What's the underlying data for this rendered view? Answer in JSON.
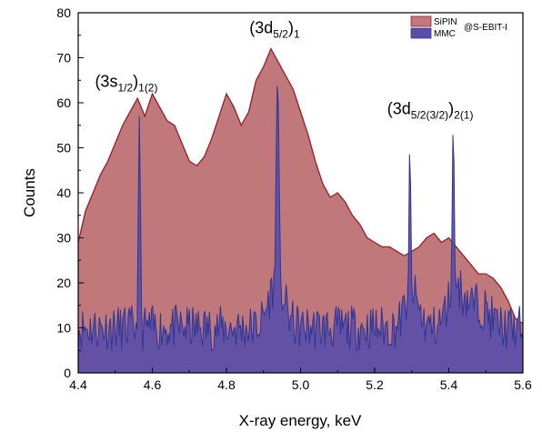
{
  "chart_data": {
    "type": "area",
    "xlabel": "X-ray energy, keV",
    "ylabel": "Counts",
    "xlim": [
      4.4,
      5.6
    ],
    "ylim": [
      0,
      80
    ],
    "x_ticks": [
      "4.4",
      "4.6",
      "4.8",
      "5.0",
      "5.2",
      "5.4",
      "5.6"
    ],
    "y_ticks": [
      "0",
      "10",
      "20",
      "30",
      "40",
      "50",
      "60",
      "70",
      "80"
    ],
    "grid": false,
    "legend": {
      "placement": "top-right",
      "suffix": "@S-EBIT-I"
    },
    "series": [
      {
        "name": "SiPIN",
        "color_fill": "#c0787a",
        "color_line": "#9a1c22",
        "x": [
          4.4,
          4.42,
          4.44,
          4.46,
          4.48,
          4.5,
          4.52,
          4.54,
          4.56,
          4.58,
          4.6,
          4.62,
          4.64,
          4.66,
          4.68,
          4.7,
          4.72,
          4.74,
          4.76,
          4.78,
          4.8,
          4.82,
          4.84,
          4.86,
          4.88,
          4.9,
          4.92,
          4.94,
          4.96,
          4.98,
          5.0,
          5.02,
          5.04,
          5.06,
          5.08,
          5.1,
          5.12,
          5.14,
          5.16,
          5.18,
          5.2,
          5.22,
          5.24,
          5.26,
          5.28,
          5.3,
          5.32,
          5.34,
          5.36,
          5.38,
          5.4,
          5.42,
          5.44,
          5.46,
          5.48,
          5.5,
          5.52,
          5.54,
          5.56,
          5.58,
          5.6
        ],
        "y": [
          29,
          36,
          40,
          44,
          47,
          51,
          55,
          58,
          61,
          57,
          62,
          59,
          56,
          55,
          51,
          47,
          46,
          48,
          52,
          57,
          62,
          59,
          55,
          58,
          65,
          68,
          72,
          69,
          66,
          63,
          58,
          53,
          47,
          42,
          39,
          40,
          38,
          35,
          33,
          30,
          29,
          28,
          28,
          27,
          26,
          27,
          28,
          30,
          31,
          29,
          30,
          28,
          26,
          24,
          22,
          22,
          21,
          19,
          16,
          12,
          11
        ]
      },
      {
        "name": "MMC",
        "color_fill": "#5a4ea8",
        "color_line": "#2f3596",
        "peaks": [
          {
            "center": 4.565,
            "height": 57,
            "width": 0.0045
          },
          {
            "center": 4.938,
            "height": 65,
            "width": 0.007
          },
          {
            "center": 5.295,
            "height": 51,
            "width": 0.0045
          },
          {
            "center": 5.412,
            "height": 55,
            "width": 0.005
          }
        ],
        "wings": [
          {
            "center": 4.935,
            "height": 10,
            "width": 0.03
          },
          {
            "center": 5.3,
            "height": 8,
            "width": 0.025
          },
          {
            "center": 5.42,
            "height": 10,
            "width": 0.03
          }
        ],
        "baseline": 10,
        "noise": 5
      }
    ],
    "annotations": [
      {
        "main": "(3s",
        "sub1": "1/2",
        "tail": ")",
        "sub2": "1(2)",
        "x": 4.53,
        "y": 63.5
      },
      {
        "main": "(3d",
        "sub1": "5/2",
        "tail": ")",
        "sub2": "1",
        "x": 4.93,
        "y": 75.5
      },
      {
        "main": "(3d",
        "sub1": "5/2(3/2)",
        "tail": ")",
        "sub2": "2(1)",
        "x": 5.35,
        "y": 57.5
      }
    ]
  }
}
